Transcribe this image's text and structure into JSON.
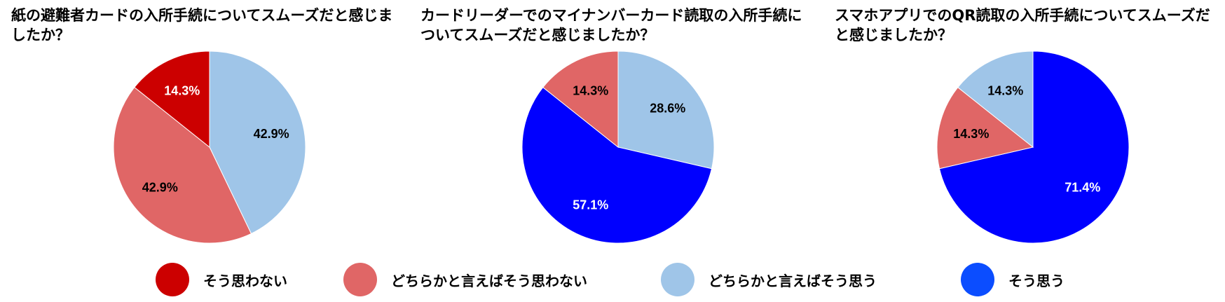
{
  "colors": {
    "そう思わない": "#cc0000",
    "どちらかと言えばそう思わない": "#e06666",
    "どちらかと言えばそう思う": "#9fc5e8",
    "そう思う": "#0000ff"
  },
  "legend": {
    "position": "bottom",
    "items": [
      {
        "label": "そう思わない",
        "color": "#cc0000"
      },
      {
        "label": "どちらかと言えばそう思わない",
        "color": "#e06666"
      },
      {
        "label": "どちらかと言えばそう思う",
        "color": "#9fc5e8"
      },
      {
        "label": "そう思う",
        "color": "#0b4dff"
      }
    ]
  },
  "chart_data": [
    {
      "type": "pie",
      "title": "紙の避難者カードの入所手続についてスムーズだと感じましたか？",
      "slices": [
        {
          "category": "どちらかと言えばそう思う",
          "value": 42.9,
          "label": "42.9%"
        },
        {
          "category": "どちらかと言えばそう思わない",
          "value": 42.9,
          "label": "42.9%"
        },
        {
          "category": "そう思わない",
          "value": 14.3,
          "label": "14.3%"
        }
      ]
    },
    {
      "type": "pie",
      "title": "カードリーダーでのマイナンバーカード読取の入所手続についてスムーズだと感じましたか？",
      "slices": [
        {
          "category": "どちらかと言えばそう思う",
          "value": 28.6,
          "label": "28.6%"
        },
        {
          "category": "そう思う",
          "value": 57.1,
          "label": "57.1%"
        },
        {
          "category": "どちらかと言えばそう思わない",
          "value": 14.3,
          "label": "14.3%"
        }
      ]
    },
    {
      "type": "pie",
      "title": "スマホアプリでのQR読取の入所手続についてスムーズだと感じましたか？",
      "slices": [
        {
          "category": "そう思う",
          "value": 71.4,
          "label": "71.4%"
        },
        {
          "category": "どちらかと言えばそう思わない",
          "value": 14.3,
          "label": "14.3%"
        },
        {
          "category": "どちらかと言えばそう思う",
          "value": 14.3,
          "label": "14.3%"
        }
      ]
    }
  ]
}
